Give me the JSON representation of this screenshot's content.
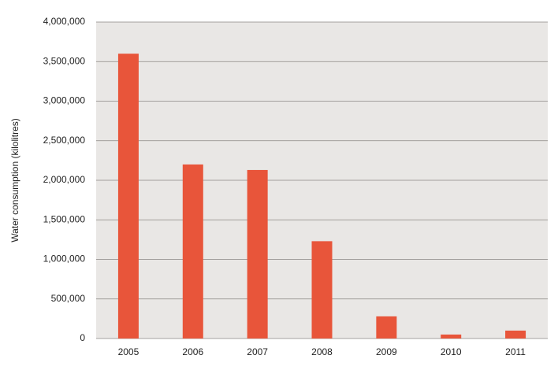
{
  "chart_data": {
    "type": "bar",
    "y_label": "Water consumption (kilolitres)",
    "categories": [
      "2005",
      "2006",
      "2007",
      "2008",
      "2009",
      "2010",
      "2011"
    ],
    "values": [
      3600000,
      2200000,
      2130000,
      1230000,
      280000,
      50000,
      100000
    ],
    "color": "#e8553a",
    "ylim": [
      0,
      4000000
    ],
    "yticks": [
      0,
      {
        "value": 500000,
        "label": "500,000"
      },
      {
        "value": 1000000,
        "label": "1,000,000"
      },
      {
        "value": 1500000,
        "label": "1,500,000"
      },
      {
        "value": 2000000,
        "label": "2,000,000"
      },
      {
        "value": 2500000,
        "label": "2,500,000"
      },
      {
        "value": 3000000,
        "label": "3,000,000"
      },
      {
        "value": 3500000,
        "label": "3,500,000"
      },
      {
        "value": 4000000,
        "label": "4,000,000"
      }
    ],
    "grid": true
  }
}
